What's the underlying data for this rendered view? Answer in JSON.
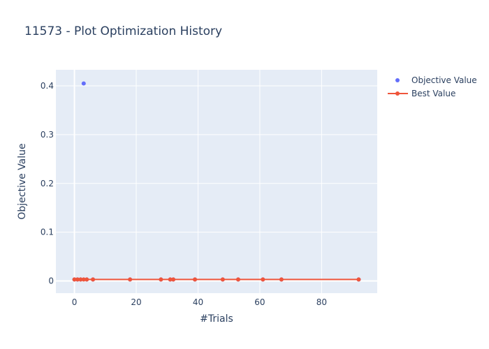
{
  "title": "11573 - Plot Optimization History",
  "colors": {
    "objective": "#636efa",
    "best": "#ef553b",
    "plot_bg": "#e5ecf6",
    "grid": "#ffffff",
    "text": "#2a3f5f"
  },
  "chart_data": {
    "type": "scatter",
    "title": "11573 - Plot Optimization History",
    "xlabel": "#Trials",
    "ylabel": "Objective Value",
    "xlim": [
      -6,
      98
    ],
    "ylim": [
      -0.025,
      0.433
    ],
    "xticks": [
      0,
      20,
      40,
      60,
      80
    ],
    "yticks": [
      0,
      0.1,
      0.2,
      0.3,
      0.4
    ],
    "ytick_labels": [
      "0",
      "0.1",
      "0.2",
      "0.3",
      "0.4"
    ],
    "grid": true,
    "legend_position": "top-right",
    "series": [
      {
        "name": "Objective Value",
        "mode": "markers",
        "color": "#636efa",
        "x": [
          0,
          1,
          2,
          3,
          4,
          6,
          18,
          28,
          31,
          32,
          39,
          48,
          53,
          61,
          67,
          92
        ],
        "y": [
          0.003,
          0.003,
          0.003,
          0.405,
          0.003,
          0.003,
          0.003,
          0.003,
          0.003,
          0.003,
          0.003,
          0.003,
          0.003,
          0.003,
          0.003,
          0.003
        ]
      },
      {
        "name": "Best Value",
        "mode": "lines+markers",
        "color": "#ef553b",
        "x": [
          0,
          1,
          2,
          3,
          4,
          6,
          18,
          28,
          31,
          32,
          39,
          48,
          53,
          61,
          67,
          92
        ],
        "y": [
          0.003,
          0.003,
          0.003,
          0.003,
          0.003,
          0.003,
          0.003,
          0.003,
          0.003,
          0.003,
          0.003,
          0.003,
          0.003,
          0.003,
          0.003,
          0.003
        ]
      }
    ]
  }
}
